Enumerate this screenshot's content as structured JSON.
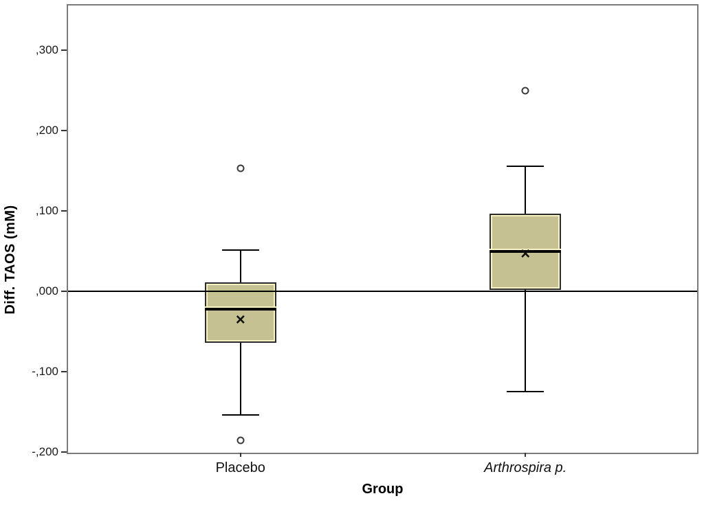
{
  "chart_data": {
    "type": "boxplot",
    "title": "",
    "xlabel": "Group",
    "ylabel": "Diff. TAOS (mM)",
    "ylim": [
      -0.201,
      0.356
    ],
    "grid": false,
    "reference_line": 0.0,
    "decimal_style": "comma",
    "yticks": [
      {
        "value": 0.3,
        "label": ",300"
      },
      {
        "value": 0.2,
        "label": ",200"
      },
      {
        "value": 0.1,
        "label": ",100"
      },
      {
        "value": 0.0,
        "label": ",000"
      },
      {
        "value": -0.1,
        "label": "-,100"
      },
      {
        "value": -0.2,
        "label": "-,200"
      }
    ],
    "groups": [
      {
        "label": "Placebo",
        "italic": false,
        "x_fraction": 0.274,
        "whisker_low": -0.154,
        "q1": -0.064,
        "median": -0.022,
        "mean": -0.037,
        "q3": 0.011,
        "whisker_high": 0.051,
        "outliers": [
          0.153,
          -0.186
        ]
      },
      {
        "label": "Arthrospira p.",
        "italic": true,
        "x_fraction": 0.727,
        "whisker_low": -0.125,
        "q1": 0.002,
        "median": 0.05,
        "mean": 0.045,
        "q3": 0.097,
        "whisker_high": 0.156,
        "outliers": [
          0.25
        ]
      }
    ],
    "mean_marker_glyph": "×",
    "colors": {
      "box_fill": "#C6C193",
      "box_inner_highlight": "#F6F2C3",
      "box_border": "#2B2B2B",
      "median": "#000000",
      "whisker": "#000000",
      "plot_border": "#7A7A7A",
      "reference_line": "#000000",
      "outlier_stroke": "#3A3A3A",
      "background": "#FFFFFF"
    }
  }
}
